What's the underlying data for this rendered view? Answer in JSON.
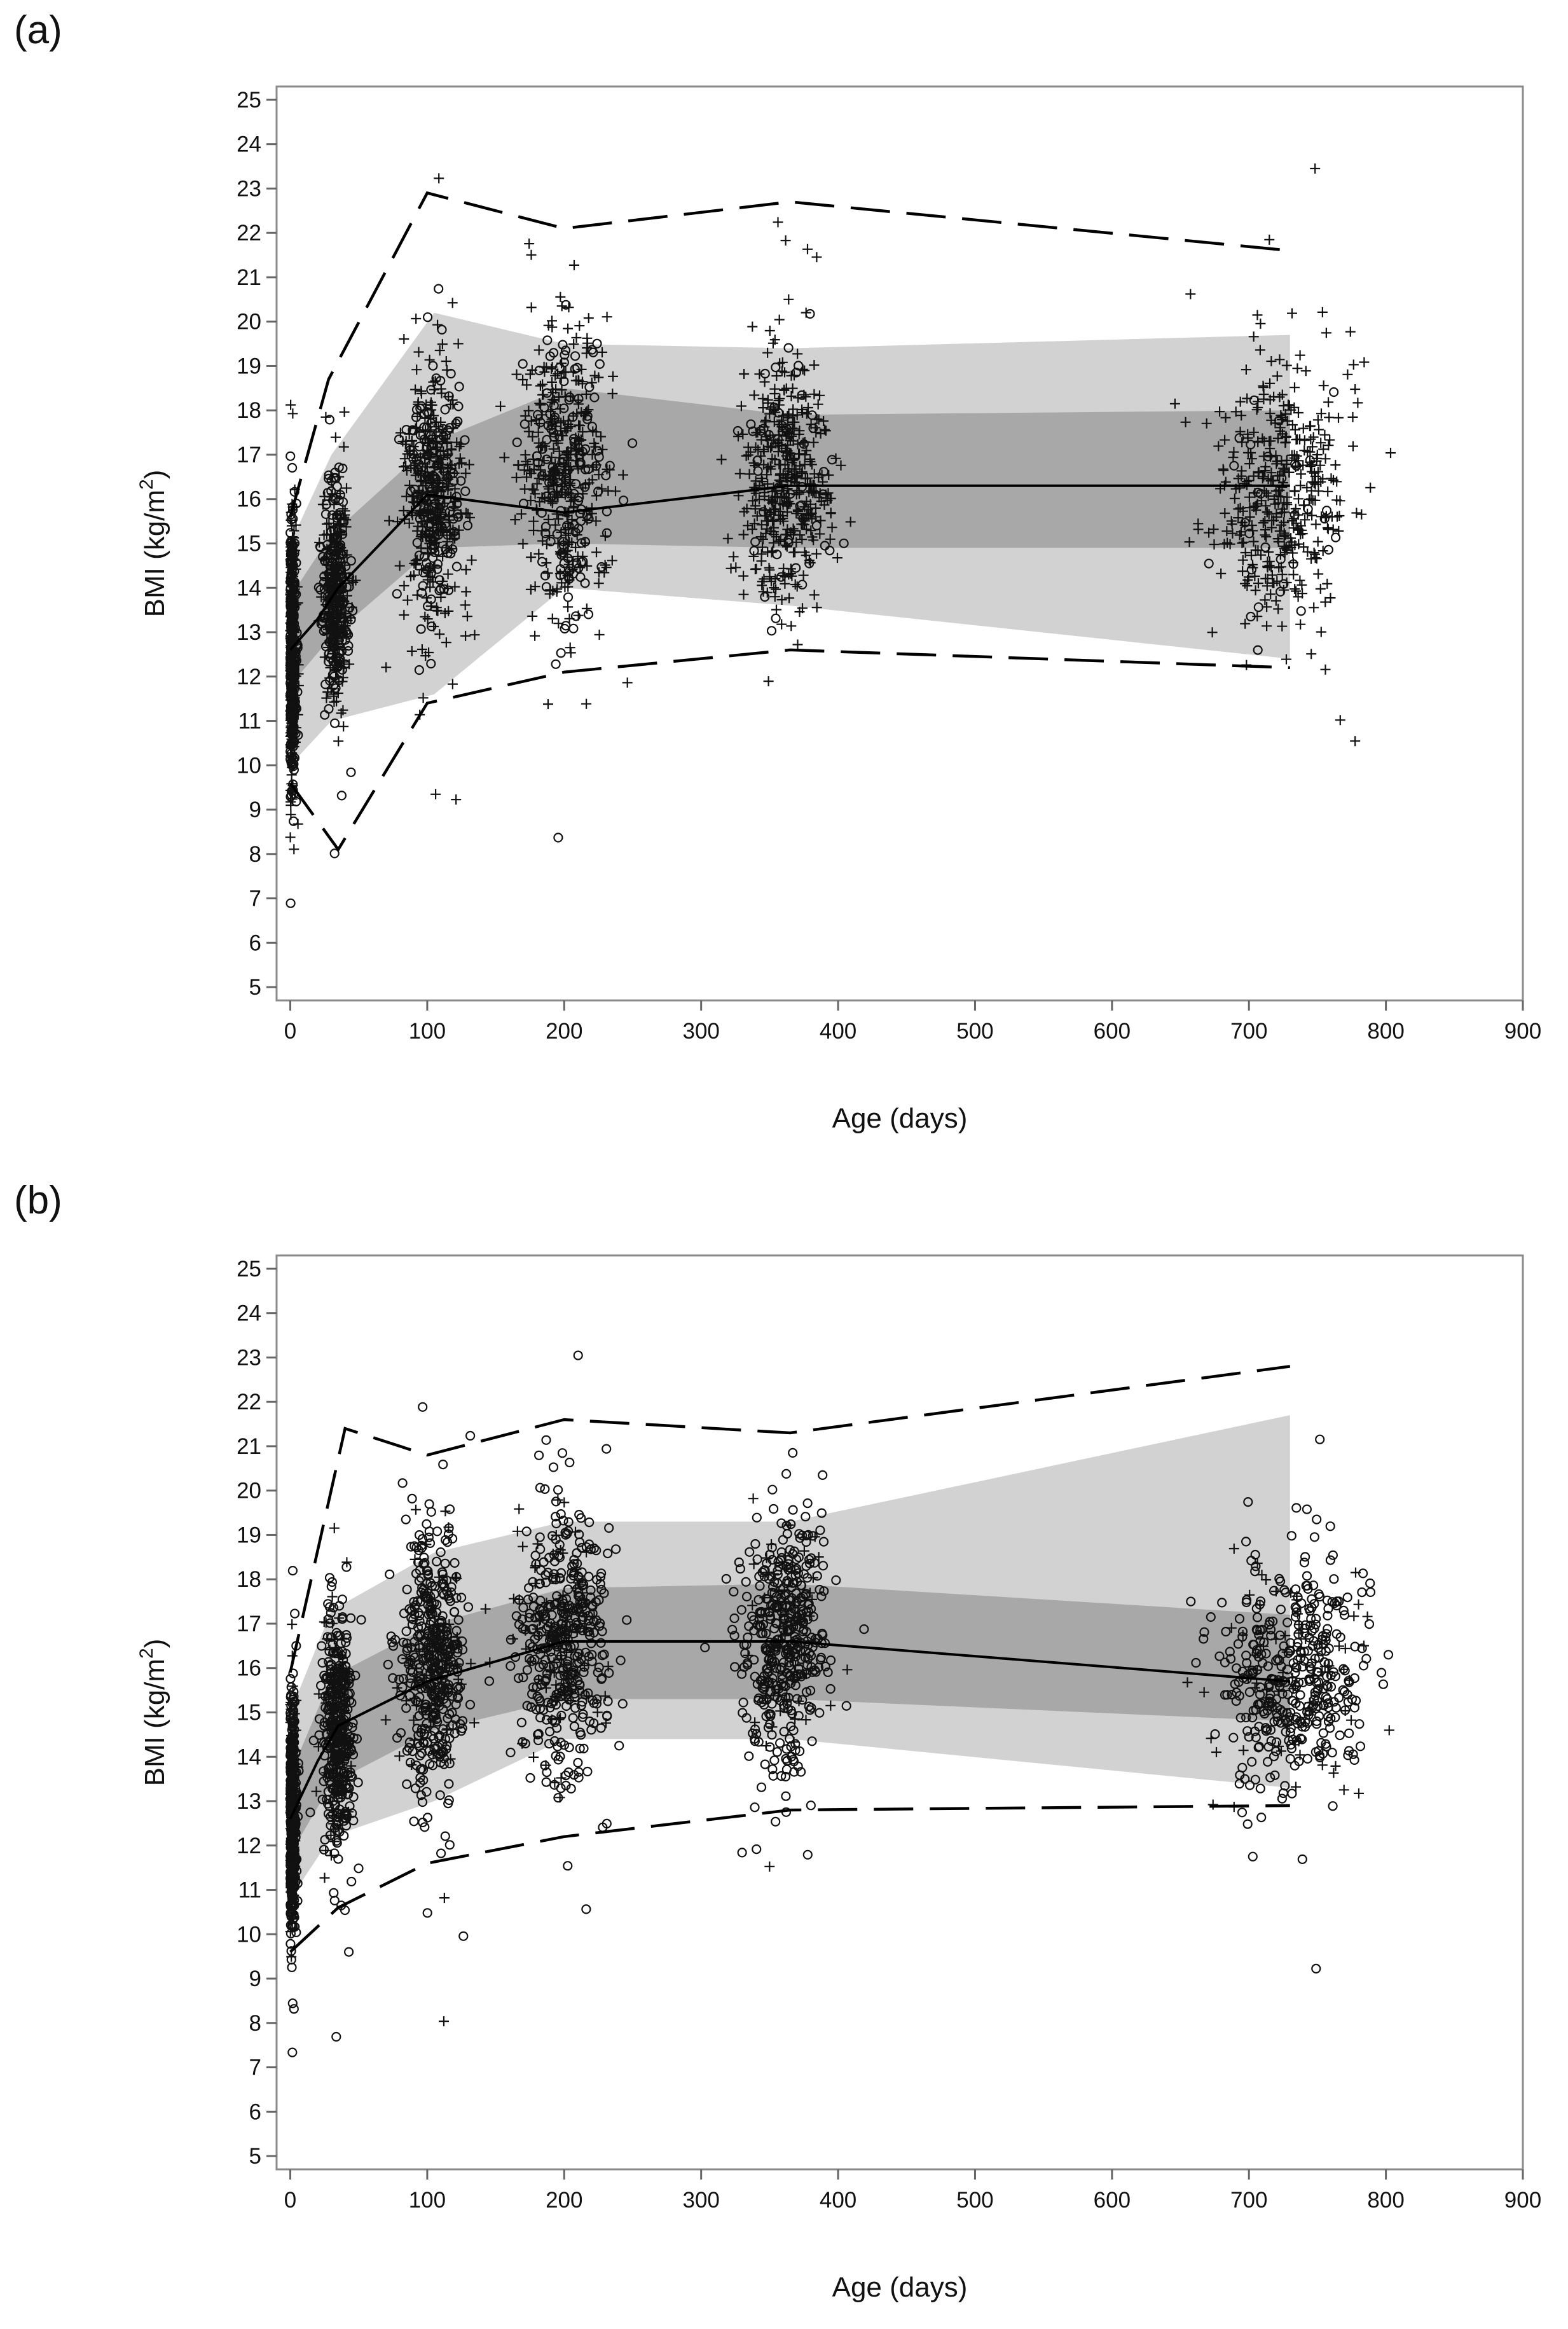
{
  "figure": {
    "panel_labels": [
      "(a)",
      "(b)"
    ]
  },
  "chart_data": [
    {
      "type": "scatter",
      "panel": "(a)",
      "title": "",
      "xlabel": "Age (days)",
      "ylabel_main": "BMI (kg/m",
      "ylabel_sup": "2",
      "ylabel_close": ")",
      "xlim": [
        -10,
        900
      ],
      "ylim": [
        4.7,
        25.3
      ],
      "xticks": [
        0,
        100,
        200,
        300,
        400,
        500,
        600,
        700,
        800,
        900
      ],
      "yticks": [
        5,
        6,
        7,
        8,
        9,
        10,
        11,
        12,
        13,
        14,
        15,
        16,
        17,
        18,
        19,
        20,
        21,
        22,
        23,
        24,
        25
      ],
      "clusters": [
        {
          "x": 0,
          "sx": 2,
          "y": 12.6,
          "sy": 1.5,
          "n": 520,
          "plus_ratio": 0.5
        },
        {
          "x": 33,
          "sx": 5,
          "y": 14.0,
          "sy": 1.3,
          "n": 420,
          "plus_ratio": 0.55
        },
        {
          "x": 105,
          "sx": 11,
          "y": 16.1,
          "sy": 1.5,
          "n": 480,
          "plus_ratio": 0.7
        },
        {
          "x": 200,
          "sx": 16,
          "y": 16.6,
          "sy": 1.6,
          "n": 480,
          "plus_ratio": 0.75
        },
        {
          "x": 362,
          "sx": 16,
          "y": 16.4,
          "sy": 1.4,
          "n": 460,
          "plus_ratio": 0.85
        },
        {
          "x": 725,
          "sx": 26,
          "y": 16.2,
          "sy": 1.3,
          "n": 440,
          "plus_ratio": 0.92
        }
      ],
      "series": [
        {
          "name": "mean",
          "x": [
            0,
            20,
            35,
            100,
            200,
            365,
            730
          ],
          "values": [
            12.6,
            13.3,
            14.0,
            16.1,
            15.7,
            16.3,
            16.3
          ]
        },
        {
          "name": "outer_band_upper",
          "x": [
            0,
            30,
            105,
            200,
            365,
            730
          ],
          "values": [
            15.0,
            17.0,
            20.2,
            19.5,
            19.4,
            19.7
          ]
        },
        {
          "name": "outer_band_lower",
          "x": [
            0,
            30,
            105,
            200,
            365,
            730
          ],
          "values": [
            10.0,
            11.0,
            11.6,
            14.0,
            13.6,
            12.4
          ]
        },
        {
          "name": "inner_band_upper",
          "x": [
            0,
            30,
            105,
            200,
            365,
            730
          ],
          "values": [
            13.8,
            15.2,
            17.3,
            18.5,
            17.9,
            18.0
          ]
        },
        {
          "name": "inner_band_lower",
          "x": [
            0,
            30,
            105,
            200,
            365,
            730
          ],
          "values": [
            11.8,
            12.9,
            14.9,
            15.0,
            14.9,
            14.9
          ]
        },
        {
          "name": "dashed_upper",
          "x": [
            0,
            28,
            100,
            200,
            365,
            730
          ],
          "values": [
            15.6,
            18.7,
            22.9,
            22.1,
            22.7,
            21.6
          ]
        },
        {
          "name": "dashed_lower",
          "x": [
            0,
            35,
            100,
            200,
            365,
            730
          ],
          "values": [
            9.6,
            8.1,
            11.4,
            12.1,
            12.6,
            12.2
          ]
        }
      ]
    },
    {
      "type": "scatter",
      "panel": "(b)",
      "title": "",
      "xlabel": "Age (days)",
      "ylabel_main": "BMI (kg/m",
      "ylabel_sup": "2",
      "ylabel_close": ")",
      "xlim": [
        -10,
        900
      ],
      "ylim": [
        4.7,
        25.3
      ],
      "xticks": [
        0,
        100,
        200,
        300,
        400,
        500,
        600,
        700,
        800,
        900
      ],
      "yticks": [
        5,
        6,
        7,
        8,
        9,
        10,
        11,
        12,
        13,
        14,
        15,
        16,
        17,
        18,
        19,
        20,
        21,
        22,
        23,
        24,
        25
      ],
      "clusters": [
        {
          "x": 0,
          "sx": 2,
          "y": 12.7,
          "sy": 1.3,
          "n": 520,
          "plus_ratio": 0.25
        },
        {
          "x": 35,
          "sx": 6,
          "y": 14.5,
          "sy": 1.3,
          "n": 440,
          "plus_ratio": 0.2
        },
        {
          "x": 105,
          "sx": 12,
          "y": 16.0,
          "sy": 1.5,
          "n": 480,
          "plus_ratio": 0.15
        },
        {
          "x": 200,
          "sx": 17,
          "y": 16.6,
          "sy": 1.5,
          "n": 480,
          "plus_ratio": 0.15
        },
        {
          "x": 362,
          "sx": 16,
          "y": 16.6,
          "sy": 1.4,
          "n": 460,
          "plus_ratio": 0.12
        },
        {
          "x": 730,
          "sx": 28,
          "y": 15.8,
          "sy": 1.3,
          "n": 460,
          "plus_ratio": 0.15
        }
      ],
      "series": [
        {
          "name": "mean",
          "x": [
            0,
            20,
            35,
            100,
            200,
            365,
            730
          ],
          "values": [
            12.6,
            13.9,
            14.7,
            15.7,
            16.6,
            16.6,
            15.7
          ]
        },
        {
          "name": "outer_band_upper",
          "x": [
            0,
            30,
            105,
            200,
            365,
            730
          ],
          "values": [
            15.0,
            17.3,
            18.6,
            19.3,
            19.3,
            21.7
          ]
        },
        {
          "name": "outer_band_lower",
          "x": [
            0,
            30,
            105,
            200,
            365,
            730
          ],
          "values": [
            10.8,
            12.2,
            13.0,
            14.4,
            14.4,
            13.3
          ]
        },
        {
          "name": "inner_band_upper",
          "x": [
            0,
            30,
            105,
            200,
            365,
            730
          ],
          "values": [
            13.6,
            15.8,
            17.0,
            17.8,
            17.9,
            17.2
          ]
        },
        {
          "name": "inner_band_lower",
          "x": [
            0,
            30,
            105,
            200,
            365,
            730
          ],
          "values": [
            11.8,
            13.4,
            14.6,
            15.3,
            15.3,
            14.8
          ]
        },
        {
          "name": "dashed_upper",
          "x": [
            0,
            40,
            100,
            200,
            365,
            730
          ],
          "values": [
            15.9,
            21.4,
            20.8,
            21.6,
            21.3,
            22.8
          ]
        },
        {
          "name": "dashed_lower",
          "x": [
            0,
            35,
            100,
            200,
            365,
            730
          ],
          "values": [
            9.6,
            10.6,
            11.6,
            12.2,
            12.8,
            12.9
          ]
        }
      ]
    }
  ]
}
